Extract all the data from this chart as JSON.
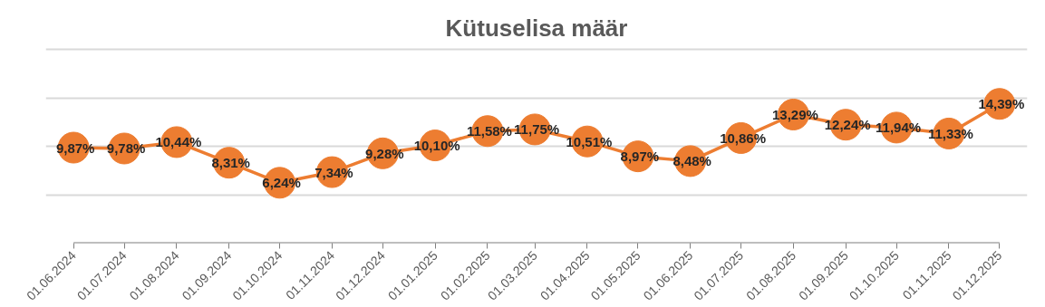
{
  "chart_data": {
    "type": "line",
    "title": "Kütuselisa määr",
    "x": [
      "2024-06-01",
      "2024-07-01",
      "2024-08-01",
      "2024-09-01",
      "2024-10-01",
      "2024-11-01",
      "2024-12-01",
      "2025-01-01",
      "2025-02-01",
      "2025-03-01",
      "2025-04-01",
      "2025-05-01",
      "2025-06-01",
      "2025-07-01",
      "2025-08-01",
      "2025-09-01",
      "2025-10-01",
      "2025-11-01",
      "2025-12-01"
    ],
    "series": [
      {
        "color": "#ed7d31",
        "values": [
          9.87,
          9.78,
          10.44,
          8.31,
          6.24,
          7.34,
          9.28,
          10.1,
          11.58,
          11.75,
          10.51,
          8.97,
          8.48,
          10.86,
          13.29,
          12.24,
          11.94,
          11.33,
          14.39
        ],
        "value_labels": [
          "9,87%",
          "9,78%",
          "10,44%",
          "8,31%",
          "6,24%",
          "7,34%",
          "9,28%",
          "10,10%",
          "11,58%",
          "11,75%",
          "10,51%",
          "8,97%",
          "8,48%",
          "10,86%",
          "13,29%",
          "12,24%",
          "11,94%",
          "11,33%",
          "14,39%"
        ]
      }
    ],
    "xticks": [
      {
        "value": "2024-06-01",
        "label": "01.06.2024"
      },
      {
        "value": "2024-07-01",
        "label": "01.07.2024"
      },
      {
        "value": "2024-08-01",
        "label": "01.08.2024"
      },
      {
        "value": "2024-09-01",
        "label": "01.09.2024"
      },
      {
        "value": "2024-10-01",
        "label": "01.10.2024"
      },
      {
        "value": "2024-11-01",
        "label": "01.11.2024"
      },
      {
        "value": "2024-12-01",
        "label": "01.12.2024"
      },
      {
        "value": "2025-01-01",
        "label": "01.01.2025"
      },
      {
        "value": "2025-02-01",
        "label": "01.02.2025"
      },
      {
        "value": "2025-03-01",
        "label": "01.03.2025"
      },
      {
        "value": "2025-04-01",
        "label": "01.04.2025"
      },
      {
        "value": "2025-05-01",
        "label": "01.05.2025"
      },
      {
        "value": "2025-06-01",
        "label": "01.06.2025"
      },
      {
        "value": "2025-07-01",
        "label": "01.07.2025"
      },
      {
        "value": "2025-08-01",
        "label": "01.08.2025"
      },
      {
        "value": "2025-09-01",
        "label": "01.09.2025"
      },
      {
        "value": "2025-10-01",
        "label": "01.10.2025"
      },
      {
        "value": "2025-11-01",
        "label": "01.11.2025"
      },
      {
        "value": "2025-12-01",
        "label": "01.12.2025"
      }
    ],
    "xlim": [
      "2024-06-01",
      "2025-12-01"
    ],
    "ylim": [
      0,
      20
    ],
    "yticks": [
      {
        "value": 0,
        "label": null
      },
      {
        "value": 5,
        "label": null
      },
      {
        "value": 10,
        "label": null
      },
      {
        "value": 15,
        "label": null
      },
      {
        "value": 20,
        "label": null
      }
    ],
    "tick_labels": "x",
    "grid": "y",
    "marker": "circle",
    "line_style": "solid"
  }
}
